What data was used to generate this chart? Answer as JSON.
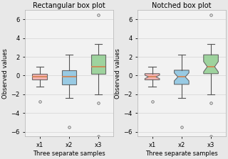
{
  "title1": "Rectangular box plot",
  "title2": "Notched box plot",
  "xlabel": "Three separate samples",
  "ylabel": "Observed values",
  "xtick_labels": [
    "x1",
    "x2",
    "x3"
  ],
  "ylim": [
    -6.5,
    7
  ],
  "box_colors": [
    "#f4a9a8",
    "#89c4e1",
    "#8fce8f"
  ],
  "median_color": "#d4804c",
  "seed": 42,
  "figsize": [
    3.2,
    2.24
  ],
  "dpi": 100,
  "fig_facecolor": "#e8e8e8",
  "ax_facecolor": "#f2f2f2",
  "grid_color": "#d8d8d8",
  "spine_color": "#bbbbbb",
  "whisker_color": "#555555",
  "flier_color": "#666666"
}
